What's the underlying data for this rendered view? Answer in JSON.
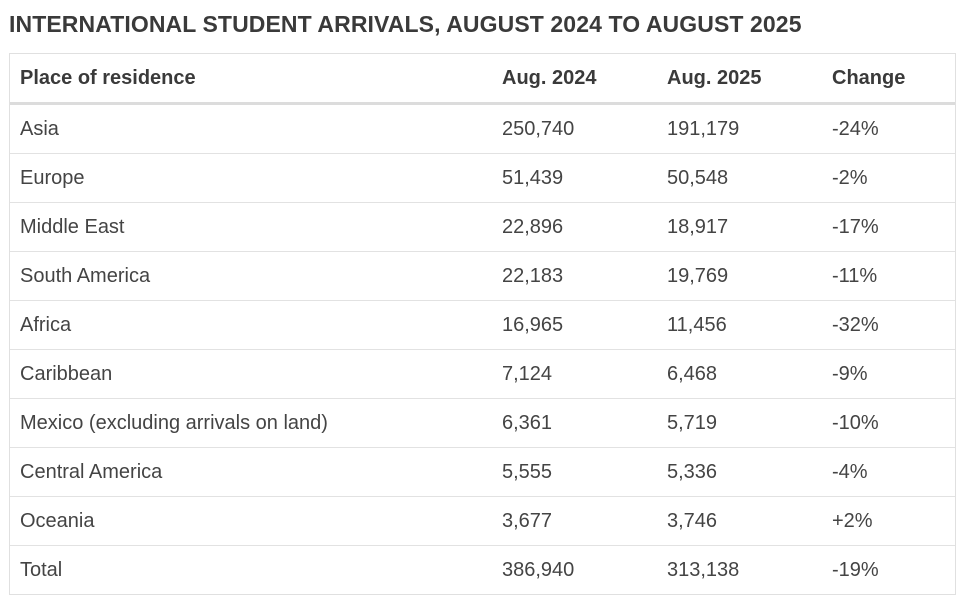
{
  "title": "INTERNATIONAL STUDENT ARRIVALS, AUGUST 2024 TO AUGUST 2025",
  "table": {
    "headers": [
      "Place of residence",
      "Aug. 2024",
      "Aug. 2025",
      "Change"
    ],
    "rows": [
      [
        "Asia",
        "250,740",
        "191,179",
        "-24%"
      ],
      [
        "Europe",
        "51,439",
        "50,548",
        "-2%"
      ],
      [
        "Middle East",
        "22,896",
        "18,917",
        "-17%"
      ],
      [
        "South America",
        "22,183",
        "19,769",
        "-11%"
      ],
      [
        "Africa",
        "16,965",
        "11,456",
        "-32%"
      ],
      [
        "Caribbean",
        "7,124",
        "6,468",
        "-9%"
      ],
      [
        "Mexico (excluding arrivals on land)",
        "6,361",
        "5,719",
        "-10%"
      ],
      [
        "Central America",
        "5,555",
        "5,336",
        "-4%"
      ],
      [
        "Oceania",
        "3,677",
        "3,746",
        "+2%"
      ],
      [
        "Total",
        "386,940",
        "313,138",
        "-19%"
      ]
    ]
  }
}
